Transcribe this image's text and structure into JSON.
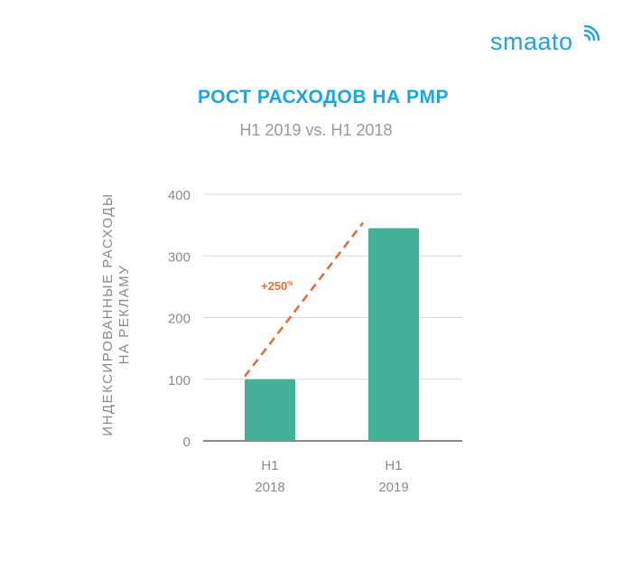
{
  "brand": {
    "logo_text": "smaato"
  },
  "chart_data": {
    "type": "bar",
    "title": "РОСТ РАСХОДОВ НА PMP",
    "subtitle": "H1 2019 vs. H1 2018",
    "ylabel_lines": [
      "ИНДЕКСИРОВАННЫЕ РАСХОДЫ",
      "НА РЕКЛАМУ"
    ],
    "xlabel": "",
    "categories": [
      [
        "H1",
        "2018"
      ],
      [
        "H1",
        "2019"
      ]
    ],
    "values": [
      100,
      345
    ],
    "ylim": [
      0,
      400
    ],
    "yticks": [
      0,
      100,
      200,
      300,
      400
    ],
    "grid": true,
    "annotation": {
      "text": "+250",
      "suffix": "%",
      "from": [
        0,
        100
      ],
      "to": [
        1,
        345
      ]
    }
  },
  "colors": {
    "bar": "#43b097",
    "title": "#1ea5de",
    "subtitle": "#9a9a9a",
    "axis_text": "#8a8a8a",
    "grid": "#d9d9d9",
    "axis_line": "#444444",
    "annotation": "#e36f3e",
    "logo": "#1ea5de"
  }
}
